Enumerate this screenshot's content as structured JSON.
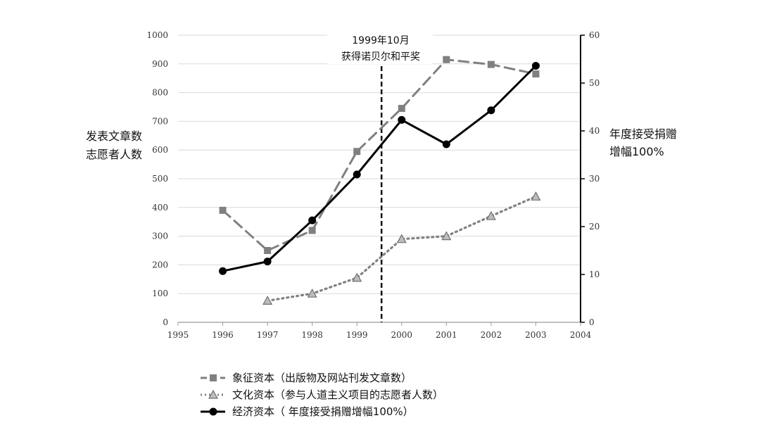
{
  "chart_data": {
    "type": "line",
    "x": [
      1996,
      1997,
      1998,
      1999,
      2000,
      2001,
      2002,
      2003
    ],
    "xlim": [
      1995,
      2004
    ],
    "x_ticks": [
      "1995",
      "1996",
      "1997",
      "1998",
      "1999",
      "2000",
      "2001",
      "2002",
      "2003",
      "2004"
    ],
    "y_left": {
      "label_lines": [
        "发表文章数",
        "志愿者人数"
      ],
      "ylim": [
        0,
        1000
      ],
      "ticks": [
        "0",
        "100",
        "200",
        "300",
        "400",
        "500",
        "600",
        "700",
        "800",
        "900",
        "1000"
      ]
    },
    "y_right": {
      "label_lines": [
        "年度接受捐赠",
        "增幅100%"
      ],
      "ylim": [
        0,
        60
      ],
      "ticks": [
        "0",
        "10",
        "20",
        "30",
        "40",
        "50",
        "60"
      ]
    },
    "series": [
      {
        "name": "象征资本（出版物及网站刊发文章数）",
        "axis": "left",
        "style": "dashed",
        "marker": "square",
        "color": "#808080",
        "values": [
          390,
          250,
          320,
          595,
          745,
          915,
          898,
          865
        ]
      },
      {
        "name": "文化资本（参与人道主义项目的志愿者人数）",
        "axis": "left",
        "style": "dotted",
        "marker": "triangle",
        "color": "#808080",
        "values": [
          null,
          75,
          100,
          155,
          290,
          300,
          370,
          438
        ]
      },
      {
        "name": "经济资本（ 年度接受捐赠增幅100%）",
        "axis": "right",
        "style": "solid",
        "marker": "circle",
        "color": "#000000",
        "values": [
          10.7,
          12.7,
          21.3,
          30.9,
          42.3,
          37.2,
          44.3,
          53.6
        ]
      }
    ],
    "annotation": {
      "x": 1999.55,
      "lines": [
        "1999年10月",
        "获得诺贝尔和平奖"
      ]
    },
    "grid": "horizontal",
    "legend_position": "bottom-left"
  }
}
